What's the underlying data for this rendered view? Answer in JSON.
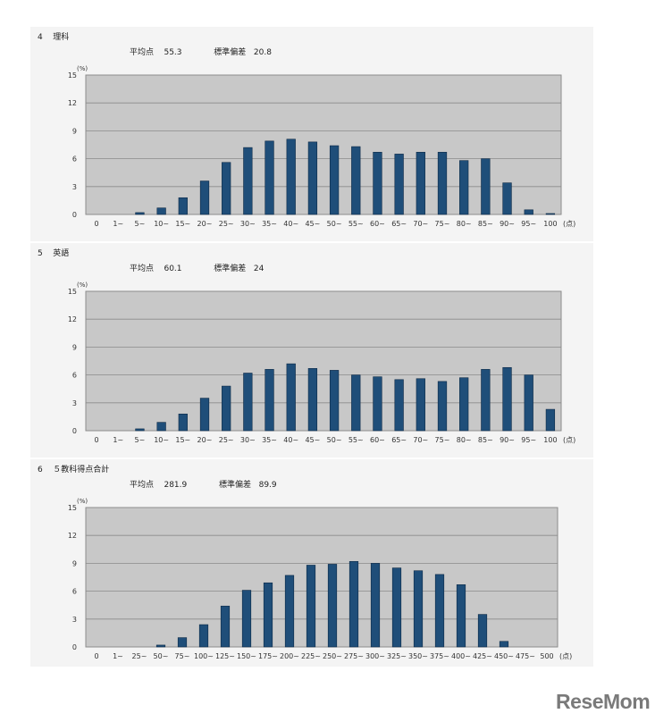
{
  "sections": [
    {
      "number": "4",
      "title": "理科",
      "mean_label": "平均点",
      "mean": "55.3",
      "sd_label": "標準偏差",
      "sd": "20.8"
    },
    {
      "number": "5",
      "title": "英語",
      "mean_label": "平均点",
      "mean": "60.1",
      "sd_label": "標準偏差",
      "sd": "24"
    },
    {
      "number": "6",
      "title": "５教科得点合計",
      "mean_label": "平均点",
      "mean": "281.9",
      "sd_label": "標準偏差",
      "sd": "89.9"
    }
  ],
  "chart_data": [
    {
      "type": "bar",
      "title": "",
      "ylabel": "(%)",
      "xlabel": "(点)",
      "ylim": [
        0,
        15
      ],
      "yticks": [
        0,
        3,
        6,
        9,
        12,
        15
      ],
      "grid": true,
      "categories": [
        "0",
        "1~",
        "5~",
        "10~",
        "15~",
        "20~",
        "25~",
        "30~",
        "35~",
        "40~",
        "45~",
        "50~",
        "55~",
        "60~",
        "65~",
        "70~",
        "75~",
        "80~",
        "85~",
        "90~",
        "95~",
        "100"
      ],
      "values": [
        0,
        0,
        0.2,
        0.7,
        1.8,
        3.6,
        5.6,
        7.2,
        7.9,
        8.1,
        7.8,
        7.4,
        7.3,
        6.7,
        6.5,
        6.7,
        6.7,
        5.8,
        6.0,
        3.4,
        0.5,
        0.1
      ],
      "color": "#1f4e79"
    },
    {
      "type": "bar",
      "title": "",
      "ylabel": "(%)",
      "xlabel": "(点)",
      "ylim": [
        0,
        15
      ],
      "yticks": [
        0,
        3,
        6,
        9,
        12,
        15
      ],
      "grid": true,
      "categories": [
        "0",
        "1~",
        "5~",
        "10~",
        "15~",
        "20~",
        "25~",
        "30~",
        "35~",
        "40~",
        "45~",
        "50~",
        "55~",
        "60~",
        "65~",
        "70~",
        "75~",
        "80~",
        "85~",
        "90~",
        "95~",
        "100"
      ],
      "values": [
        0,
        0,
        0.2,
        0.9,
        1.8,
        3.5,
        4.8,
        6.2,
        6.6,
        7.2,
        6.7,
        6.5,
        6.0,
        5.8,
        5.5,
        5.6,
        5.3,
        5.7,
        6.6,
        6.8,
        6.0,
        2.3
      ],
      "color": "#1f4e79"
    },
    {
      "type": "bar",
      "title": "",
      "ylabel": "(%)",
      "xlabel": "(点)",
      "ylim": [
        0,
        15
      ],
      "yticks": [
        0,
        3,
        6,
        9,
        12,
        15
      ],
      "grid": true,
      "categories": [
        "0",
        "1~",
        "25~",
        "50~",
        "75~",
        "100~",
        "125~",
        "150~",
        "175~",
        "200~",
        "225~",
        "250~",
        "275~",
        "300~",
        "325~",
        "350~",
        "375~",
        "400~",
        "425~",
        "450~",
        "475~",
        "500"
      ],
      "values": [
        0,
        0,
        0,
        0.2,
        1.0,
        2.4,
        4.4,
        6.1,
        6.9,
        7.7,
        8.8,
        8.9,
        9.2,
        9.0,
        8.5,
        8.2,
        7.8,
        6.7,
        3.5,
        0.6,
        0,
        0
      ],
      "color": "#1f4e79"
    }
  ],
  "watermark": "ReseMom"
}
